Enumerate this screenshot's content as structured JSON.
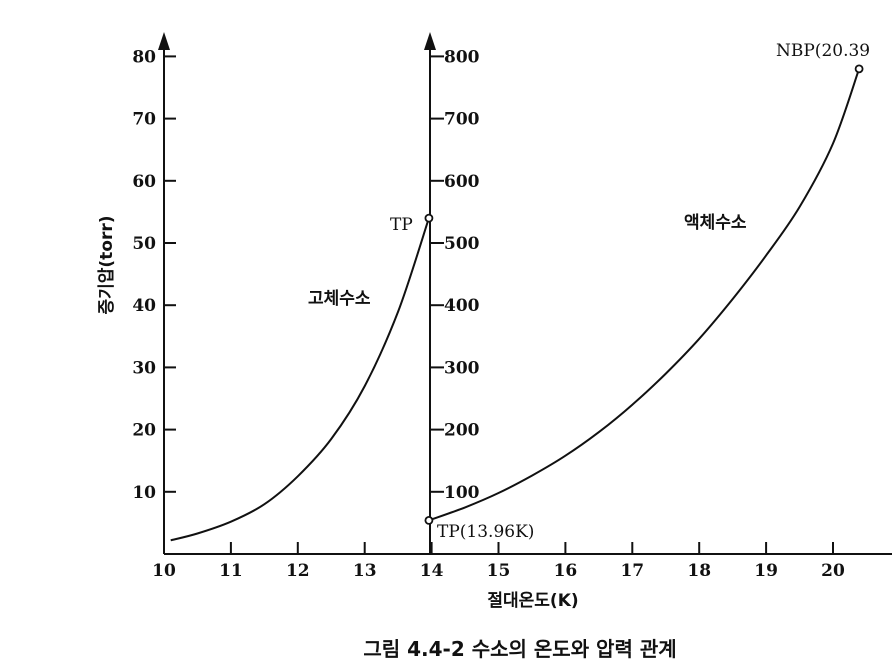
{
  "chart_data": {
    "type": "line",
    "caption": "그림 4.4-2 수소의 온도와 압력 관계",
    "xlabel": "절대온도(K)",
    "ylabel_left": "증기압(torr)",
    "xlim": [
      10,
      20.5
    ],
    "x_ticks": [
      "10",
      "11",
      "12",
      "13",
      "14",
      "15",
      "16",
      "17",
      "18",
      "19",
      "20"
    ],
    "left_axis": {
      "ylim": [
        0,
        80
      ],
      "ticks": [
        "10",
        "20",
        "30",
        "40",
        "50",
        "60",
        "70",
        "80"
      ]
    },
    "right_axis": {
      "ylim": [
        0,
        800
      ],
      "ticks": [
        "100",
        "200",
        "300",
        "400",
        "500",
        "600",
        "700",
        "800"
      ]
    },
    "series": [
      {
        "name": "고체수소",
        "axis": "left",
        "x": [
          10.1,
          10.5,
          11.0,
          11.5,
          12.0,
          12.5,
          13.0,
          13.5,
          13.96
        ],
        "y": [
          2.2,
          3.3,
          5.2,
          8.0,
          12.5,
          18.5,
          27.0,
          39.0,
          54.0
        ]
      },
      {
        "name": "액체수소",
        "axis": "right",
        "x": [
          13.96,
          14.5,
          15.0,
          15.5,
          16.0,
          16.5,
          17.0,
          17.5,
          18.0,
          18.5,
          19.0,
          19.5,
          20.0,
          20.39
        ],
        "y": [
          54,
          75,
          98,
          126,
          158,
          196,
          240,
          290,
          346,
          410,
          480,
          558,
          660,
          780
        ]
      }
    ],
    "annotations": {
      "tp_upper": "TP",
      "tp_lower": "TP(13.96K)",
      "nbp": "NBP(20.39"
    }
  }
}
